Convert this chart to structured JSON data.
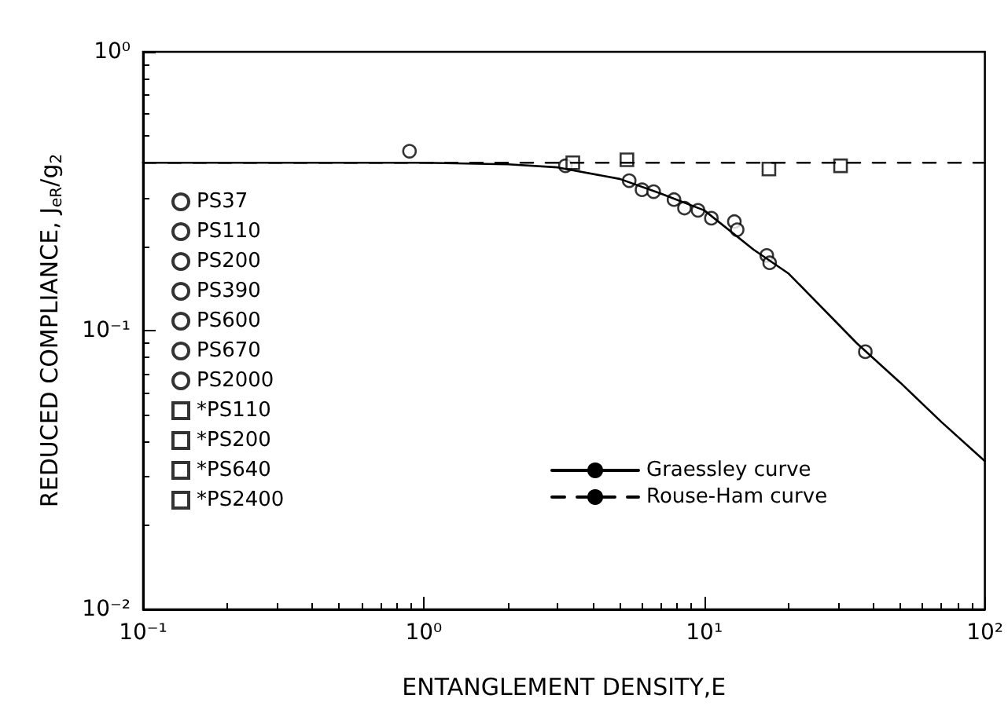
{
  "chart_data": {
    "type": "scatter",
    "xlabel": "ENTANGLEMENT DENSITY,E",
    "ylabel": "REDUCED COMPLIANCE, J$_{eR}$/g$_{2}$",
    "log": "xy",
    "xlim": [
      0.1,
      100
    ],
    "ylim": [
      0.01,
      1
    ],
    "xticks": [
      {
        "value": 0.1,
        "label": "10⁻¹"
      },
      {
        "value": 1,
        "label": "10⁰"
      },
      {
        "value": 10,
        "label": "10¹"
      },
      {
        "value": 100,
        "label": "10²"
      }
    ],
    "yticks": [
      {
        "value": 0.01,
        "label": "10⁻²"
      },
      {
        "value": 0.1,
        "label": "10⁻¹"
      },
      {
        "value": 1,
        "label": "10⁰"
      }
    ],
    "grid": false,
    "legend": "left",
    "series": [
      {
        "name": "PS37",
        "color": "#000000",
        "marker": "circle",
        "x": [
          0.89
        ],
        "values": [
          0.44
        ]
      },
      {
        "name": "PS110",
        "color": "#000000",
        "marker": "circle",
        "x": [
          3.2,
          5.4
        ],
        "values": [
          0.39,
          0.345
        ]
      },
      {
        "name": "PS200",
        "color": "#000000",
        "marker": "circle",
        "x": [
          6.0,
          6.6
        ],
        "values": [
          0.32,
          0.315
        ]
      },
      {
        "name": "PS390",
        "color": "#000000",
        "marker": "circle",
        "x": [
          7.8,
          12.8
        ],
        "values": [
          0.295,
          0.246
        ]
      },
      {
        "name": "PS600",
        "color": "#000000",
        "marker": "circle",
        "x": [
          8.5,
          13.1
        ],
        "values": [
          0.275,
          0.23
        ]
      },
      {
        "name": "PS670",
        "color": "#000000",
        "marker": "circle",
        "x": [
          9.5,
          16.7
        ],
        "values": [
          0.27,
          0.186
        ]
      },
      {
        "name": "PS2000",
        "color": "#000000",
        "marker": "circle",
        "x": [
          10.6,
          17.1,
          37.5
        ],
        "values": [
          0.253,
          0.175,
          0.084
        ]
      },
      {
        "name": "*PS110",
        "color": "#000000",
        "marker": "square",
        "x": [
          3.4
        ],
        "values": [
          0.4
        ]
      },
      {
        "name": "*PS200",
        "color": "#000000",
        "marker": "square",
        "x": [
          5.3
        ],
        "values": [
          0.41
        ]
      },
      {
        "name": "*PS640",
        "color": "#000000",
        "marker": "square",
        "x": [
          17
        ],
        "values": [
          0.38
        ]
      },
      {
        "name": "*PS2400",
        "color": "#000000",
        "marker": "square",
        "x": [
          30.6
        ],
        "values": [
          0.39
        ]
      },
      {
        "name": "Graessley curve",
        "type": "line",
        "color": "#000000",
        "marker": "none",
        "line_style": "solid",
        "x": [
          0.1,
          1,
          2,
          3,
          5,
          7,
          10,
          15,
          20,
          35,
          50,
          70,
          100
        ],
        "values": [
          0.4,
          0.4,
          0.395,
          0.385,
          0.35,
          0.31,
          0.27,
          0.195,
          0.16,
          0.09,
          0.065,
          0.047,
          0.034
        ]
      },
      {
        "name": "Rouse-Ham curve",
        "type": "line",
        "color": "#000000",
        "marker": "none",
        "line_style": "dashed",
        "x": [
          0.1,
          100
        ],
        "values": [
          0.4,
          0.4
        ]
      }
    ]
  }
}
